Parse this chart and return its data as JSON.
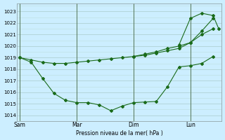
{
  "xlabel": "Pression niveau de la mer( hPa )",
  "background_color": "#cceeff",
  "grid_color_major": "#aacccc",
  "grid_color_minor": "#bbdddd",
  "line_color": "#1a6b1a",
  "ylim": [
    1013.5,
    1023.7
  ],
  "y_ticks": [
    1014,
    1015,
    1016,
    1017,
    1018,
    1019,
    1020,
    1021,
    1022,
    1023
  ],
  "day_labels": [
    "Sam",
    "Mar",
    "Dim",
    "Lun"
  ],
  "day_positions": [
    0,
    40,
    80,
    120
  ],
  "xlim": [
    -2,
    142
  ],
  "series1_x": [
    0,
    8,
    16,
    24,
    32,
    40,
    48,
    56,
    64,
    72,
    80,
    88,
    96,
    104,
    112,
    120,
    128,
    136
  ],
  "series1_y": [
    1019.0,
    1018.8,
    1018.6,
    1018.5,
    1018.5,
    1018.6,
    1018.7,
    1018.8,
    1018.9,
    1019.0,
    1019.1,
    1019.2,
    1019.4,
    1019.6,
    1019.8,
    1020.3,
    1021.0,
    1021.5
  ],
  "series2_x": [
    0,
    8,
    16,
    24,
    32,
    40,
    48,
    56,
    64,
    72,
    80,
    88,
    96,
    104,
    112,
    120,
    128,
    136
  ],
  "series2_y": [
    1019.0,
    1018.6,
    1017.2,
    1015.9,
    1015.3,
    1015.1,
    1015.1,
    1014.9,
    1014.4,
    1014.8,
    1015.1,
    1015.15,
    1015.2,
    1016.5,
    1018.2,
    1018.3,
    1018.5,
    1019.1
  ],
  "series3_x": [
    80,
    88,
    96,
    104,
    112,
    120,
    128,
    136
  ],
  "series3_y": [
    1019.1,
    1019.3,
    1019.5,
    1019.8,
    1020.0,
    1020.3,
    1021.3,
    1022.4
  ],
  "series4_x": [
    112,
    120,
    128,
    136,
    140
  ],
  "series4_y": [
    1020.1,
    1022.4,
    1022.85,
    1022.65,
    1021.5
  ],
  "vline_color": "#557755",
  "marker_size": 2.0,
  "linewidth": 0.8
}
